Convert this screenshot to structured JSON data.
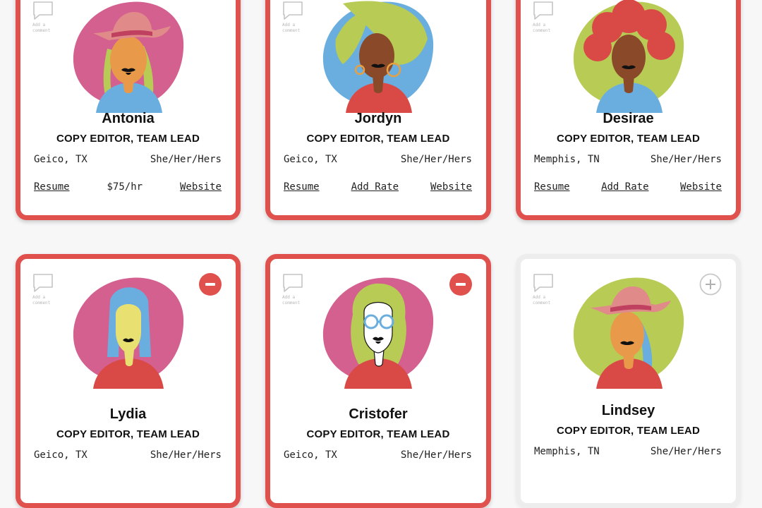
{
  "comment_hint": "Add a comment",
  "colors": {
    "selected_border": "#e0504d",
    "remove_button": "#e0504d",
    "add_button": "#c8c8c8",
    "pink": "#d4608f",
    "green": "#b8cc55",
    "blue": "#6aaee0",
    "red": "#d94a47"
  },
  "cards": [
    {
      "name": "Antonia",
      "role": "COPY EDITOR, TEAM LEAD",
      "location": "Geico, TX",
      "pronouns": "She/Her/Hers",
      "resume": "Resume",
      "rate": "$75/hr",
      "website": "Website",
      "state": "selected"
    },
    {
      "name": "Jordyn",
      "role": "COPY EDITOR, TEAM LEAD",
      "location": "Geico, TX",
      "pronouns": "She/Her/Hers",
      "resume": "Resume",
      "rate": "Add Rate",
      "website": "Website",
      "state": "selected"
    },
    {
      "name": "Desirae",
      "role": "COPY EDITOR, TEAM LEAD",
      "location": "Memphis, TN",
      "pronouns": "She/Her/Hers",
      "resume": "Resume",
      "rate": "Add Rate",
      "website": "Website",
      "state": "selected"
    },
    {
      "name": "Lydia",
      "role": "COPY EDITOR, TEAM LEAD",
      "location": "Geico, TX",
      "pronouns": "She/Her/Hers",
      "state": "selected"
    },
    {
      "name": "Cristofer",
      "role": "COPY EDITOR, TEAM LEAD",
      "location": "Geico, TX",
      "pronouns": "She/Her/Hers",
      "state": "selected"
    },
    {
      "name": "Lindsey",
      "role": "COPY EDITOR, TEAM LEAD",
      "location": "Memphis, TN",
      "pronouns": "She/Her/Hers",
      "state": "unselected"
    }
  ],
  "icons": {
    "comment": "speech-bubble-icon",
    "remove": "minus-circle-icon",
    "add": "plus-circle-icon"
  }
}
